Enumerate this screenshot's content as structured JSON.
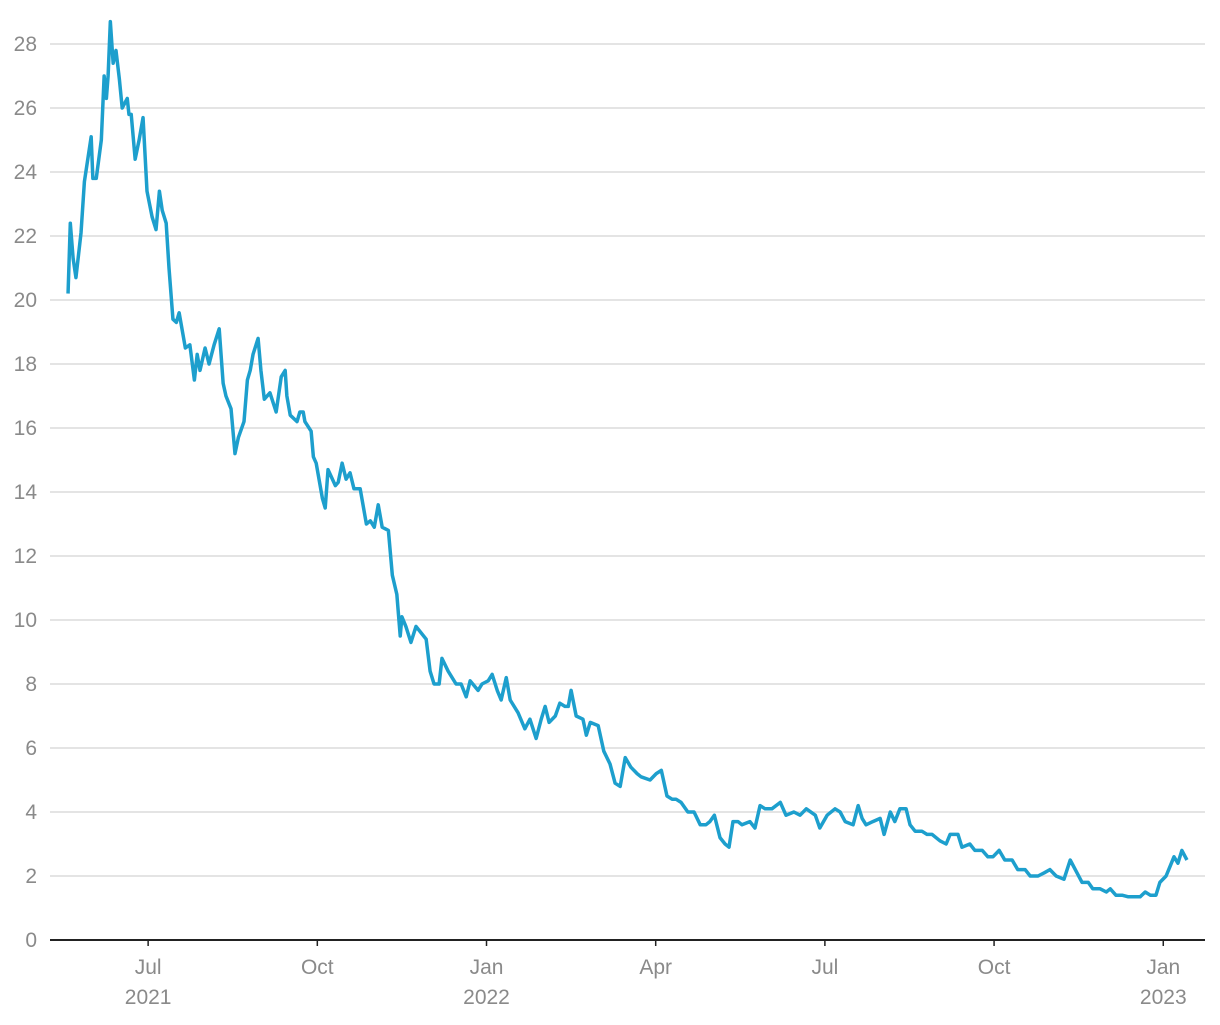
{
  "chart_data": {
    "type": "line",
    "xlim": [
      4.26,
      24.74
    ],
    "xticks": [
      {
        "value": 6,
        "label": "Jul 2021"
      },
      {
        "value": 9,
        "label": "Oct"
      },
      {
        "value": 12,
        "label": "Jan 2022"
      },
      {
        "value": 15,
        "label": "Apr"
      },
      {
        "value": 18,
        "label": "Jul"
      },
      {
        "value": 21,
        "label": "Oct"
      },
      {
        "value": 24,
        "label": "Jan 2023"
      }
    ],
    "ylim": [
      0,
      28.8
    ],
    "yticks": [
      0,
      2,
      4,
      6,
      8,
      10,
      12,
      14,
      16,
      18,
      20,
      22,
      24,
      26,
      28
    ],
    "grid": true,
    "color": "#1d9fcd",
    "x": [
      4.58,
      4.62,
      4.67,
      4.72,
      4.81,
      4.87,
      4.99,
      5.02,
      5.08,
      5.17,
      5.22,
      5.26,
      5.29,
      5.33,
      5.38,
      5.43,
      5.49,
      5.54,
      5.63,
      5.66,
      5.7,
      5.77,
      5.84,
      5.91,
      5.98,
      6.07,
      6.14,
      6.2,
      6.25,
      6.32,
      6.37,
      6.44,
      6.5,
      6.55,
      6.6,
      6.66,
      6.74,
      6.82,
      6.87,
      6.92,
      7.01,
      7.08,
      7.17,
      7.26,
      7.33,
      7.38,
      7.47,
      7.54,
      7.6,
      7.7,
      7.76,
      7.81,
      7.86,
      7.95,
      8.0,
      8.06,
      8.16,
      8.27,
      8.36,
      8.43,
      8.46,
      8.52,
      8.64,
      8.69,
      8.75,
      8.78,
      8.89,
      8.93,
      8.98,
      9.09,
      9.14,
      9.19,
      9.32,
      9.37,
      9.44,
      9.51,
      9.58,
      9.65,
      9.76,
      9.87,
      9.94,
      10.01,
      10.08,
      10.15,
      10.26,
      10.33,
      10.41,
      10.47,
      10.5,
      10.57,
      10.66,
      10.75,
      10.93,
      11.0,
      11.07,
      11.16,
      11.21,
      11.32,
      11.46,
      11.55,
      11.64,
      11.71,
      11.85,
      11.92,
      12.03,
      12.1,
      12.19,
      12.26,
      12.35,
      12.42,
      12.56,
      12.68,
      12.77,
      12.88,
      12.97,
      13.04,
      13.11,
      13.22,
      13.3,
      13.39,
      13.45,
      13.5,
      13.59,
      13.71,
      13.77,
      13.84,
      13.98,
      14.08,
      14.19,
      14.28,
      14.37,
      14.46,
      14.56,
      14.67,
      14.74,
      14.9,
      15.01,
      15.1,
      15.2,
      15.29,
      15.36,
      15.45,
      15.57,
      15.68,
      15.79,
      15.89,
      15.96,
      16.04,
      16.14,
      16.23,
      16.3,
      16.37,
      16.46,
      16.53,
      16.67,
      16.76,
      16.85,
      16.94,
      17.06,
      17.21,
      17.31,
      17.45,
      17.56,
      17.67,
      17.83,
      17.91,
      18.04,
      18.18,
      18.27,
      18.36,
      18.5,
      18.59,
      18.66,
      18.73,
      18.85,
      18.98,
      19.05,
      19.16,
      19.24,
      19.33,
      19.44,
      19.51,
      19.6,
      19.72,
      19.81,
      19.9,
      20.04,
      20.15,
      20.22,
      20.36,
      20.43,
      20.57,
      20.66,
      20.79,
      20.89,
      20.98,
      21.09,
      21.19,
      21.32,
      21.42,
      21.55,
      21.64,
      21.78,
      21.89,
      21.99,
      22.1,
      22.24,
      22.35,
      22.47,
      22.56,
      22.67,
      22.75,
      22.88,
      22.99,
      23.06,
      23.16,
      23.27,
      23.38,
      23.48,
      23.59,
      23.68,
      23.77,
      23.87,
      23.94,
      24.05,
      24.12,
      24.19,
      24.26,
      24.33,
      24.42
    ],
    "values": [
      20.2,
      22.4,
      21.3,
      20.7,
      22.1,
      23.7,
      25.1,
      23.8,
      23.8,
      25.0,
      27.0,
      26.3,
      27.0,
      28.7,
      27.4,
      27.8,
      26.9,
      26.0,
      26.3,
      25.8,
      25.8,
      24.4,
      25.0,
      25.7,
      23.4,
      22.6,
      22.2,
      23.4,
      22.8,
      22.4,
      21.0,
      19.4,
      19.3,
      19.6,
      19.1,
      18.5,
      18.6,
      17.5,
      18.3,
      17.8,
      18.5,
      18.0,
      18.6,
      19.1,
      17.4,
      17.0,
      16.6,
      15.2,
      15.7,
      16.2,
      17.5,
      17.8,
      18.3,
      18.8,
      17.8,
      16.9,
      17.1,
      16.5,
      17.6,
      17.8,
      17.0,
      16.4,
      16.2,
      16.5,
      16.5,
      16.2,
      15.9,
      15.1,
      14.9,
      13.8,
      13.5,
      14.7,
      14.2,
      14.3,
      14.9,
      14.4,
      14.6,
      14.1,
      14.1,
      13.0,
      13.1,
      12.9,
      13.6,
      12.9,
      12.8,
      11.4,
      10.8,
      9.5,
      10.1,
      9.8,
      9.3,
      9.8,
      9.4,
      8.4,
      8.0,
      8.0,
      8.8,
      8.4,
      8.0,
      8.0,
      7.6,
      8.1,
      7.8,
      8.0,
      8.1,
      8.3,
      7.8,
      7.5,
      8.2,
      7.5,
      7.1,
      6.6,
      6.9,
      6.3,
      6.9,
      7.3,
      6.8,
      7.0,
      7.4,
      7.3,
      7.3,
      7.8,
      7.0,
      6.9,
      6.4,
      6.8,
      6.7,
      5.9,
      5.5,
      4.9,
      4.8,
      5.7,
      5.4,
      5.2,
      5.1,
      5.0,
      5.2,
      5.3,
      4.5,
      4.4,
      4.4,
      4.3,
      4.0,
      4.0,
      3.6,
      3.6,
      3.7,
      3.9,
      3.2,
      3.0,
      2.9,
      3.7,
      3.7,
      3.6,
      3.7,
      3.5,
      4.2,
      4.1,
      4.1,
      4.3,
      3.9,
      4.0,
      3.9,
      4.1,
      3.9,
      3.5,
      3.9,
      4.1,
      4.0,
      3.7,
      3.6,
      4.2,
      3.8,
      3.6,
      3.7,
      3.8,
      3.3,
      4.0,
      3.7,
      4.1,
      4.1,
      3.6,
      3.4,
      3.4,
      3.3,
      3.3,
      3.1,
      3.0,
      3.3,
      3.3,
      2.9,
      3.0,
      2.8,
      2.8,
      2.6,
      2.6,
      2.8,
      2.5,
      2.5,
      2.2,
      2.2,
      2.0,
      2.0,
      2.1,
      2.2,
      2.0,
      1.9,
      2.5,
      2.1,
      1.8,
      1.8,
      1.6,
      1.6,
      1.5,
      1.6,
      1.4,
      1.4,
      1.35,
      1.35,
      1.35,
      1.5,
      1.4,
      1.4,
      1.8,
      2.0,
      2.3,
      2.6,
      2.4,
      2.8,
      2.5
    ]
  }
}
